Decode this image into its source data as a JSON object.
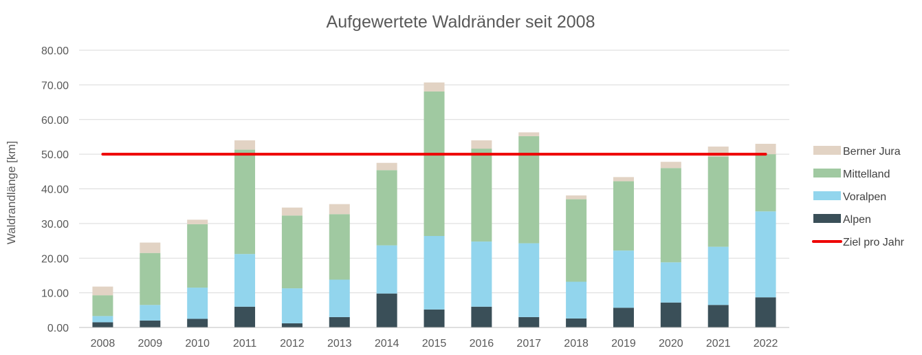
{
  "chart_data": {
    "type": "bar",
    "stacked": true,
    "title": "Aufgewertete Waldränder seit 2008",
    "xlabel": "",
    "ylabel": "Waldrandlänge [km]",
    "ylim": [
      0,
      80
    ],
    "yticks": [
      "0.00",
      "10.00",
      "20.00",
      "30.00",
      "40.00",
      "50.00",
      "60.00",
      "70.00",
      "80.00"
    ],
    "grid": true,
    "legend_position": "right",
    "categories": [
      "2008",
      "2009",
      "2010",
      "2011",
      "2012",
      "2013",
      "2014",
      "2015",
      "2016",
      "2017",
      "2018",
      "2019",
      "2020",
      "2021",
      "2022"
    ],
    "series": [
      {
        "name": "Alpen",
        "color": "#3a4f58",
        "values": [
          1.5,
          2.0,
          2.5,
          6.0,
          1.2,
          3.0,
          9.8,
          5.2,
          6.0,
          3.0,
          2.6,
          5.7,
          7.2,
          6.5,
          8.7
        ]
      },
      {
        "name": "Voralpen",
        "color": "#92d5ed",
        "values": [
          1.8,
          4.5,
          9.0,
          15.2,
          10.1,
          10.8,
          13.9,
          21.2,
          18.8,
          21.3,
          10.6,
          16.5,
          11.6,
          16.8,
          24.8
        ]
      },
      {
        "name": "Mittelland",
        "color": "#a0c9a1",
        "values": [
          6.0,
          15.0,
          18.3,
          30.1,
          21.0,
          18.9,
          21.7,
          41.7,
          26.8,
          30.9,
          23.8,
          20.0,
          27.2,
          26.0,
          16.5
        ]
      },
      {
        "name": "Berner Jura",
        "color": "#e2d3c4",
        "values": [
          2.5,
          3.0,
          1.3,
          2.7,
          2.3,
          2.9,
          2.1,
          2.6,
          2.4,
          1.1,
          1.1,
          1.2,
          1.8,
          2.9,
          3.0
        ]
      }
    ],
    "lines": [
      {
        "name": "Ziel pro Jahr",
        "color": "#ee0000",
        "value": 50
      }
    ],
    "legend_order": [
      "Berner Jura",
      "Mittelland",
      "Voralpen",
      "Alpen",
      "Ziel pro Jahr"
    ]
  }
}
